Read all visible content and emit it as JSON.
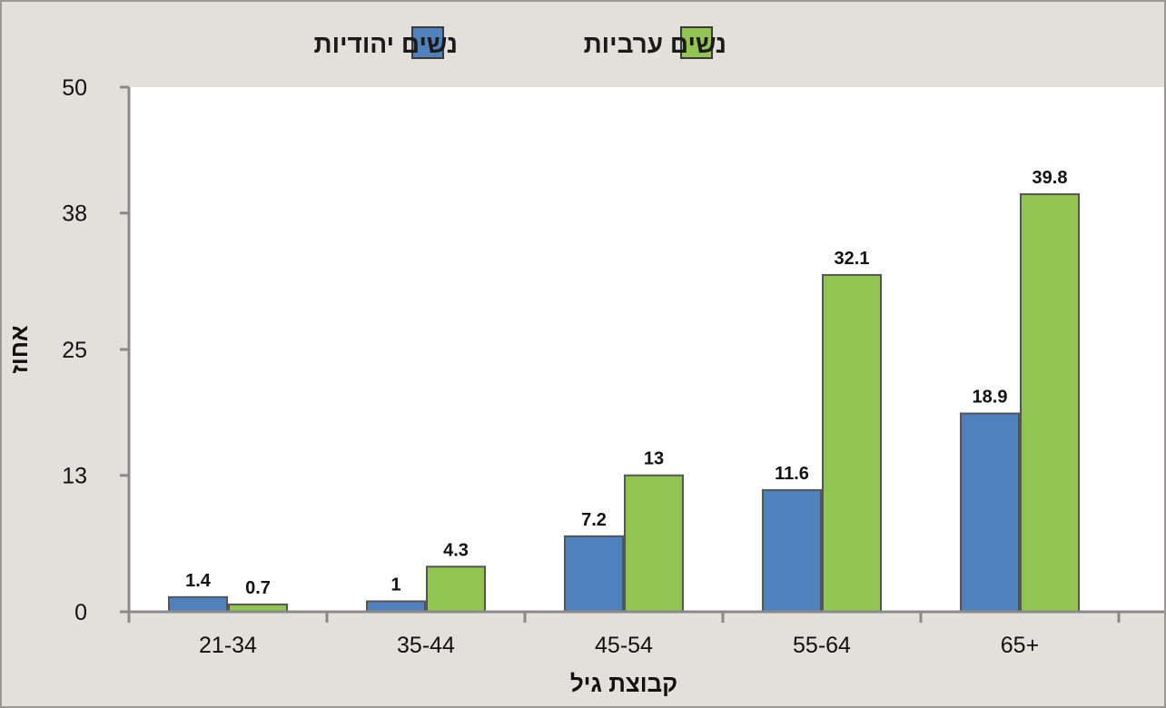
{
  "chart_data": {
    "type": "bar",
    "categories": [
      "21-34",
      "35-44",
      "45-54",
      "55-64",
      "65+"
    ],
    "series": [
      {
        "name": "נשים יהודיות",
        "color": "#4f81bd",
        "values": [
          1.4,
          1,
          7.2,
          11.6,
          18.9
        ]
      },
      {
        "name": "נשים ערביות",
        "color": "#92c451",
        "values": [
          0.7,
          4.3,
          13,
          32.1,
          39.8
        ]
      }
    ],
    "title": "",
    "xlabel": "קבוצת גיל",
    "ylabel": "אחוז",
    "ylim": [
      0,
      50
    ],
    "yticks": [
      0,
      13,
      25,
      38,
      50
    ],
    "grid": false,
    "legend_position": "top"
  }
}
